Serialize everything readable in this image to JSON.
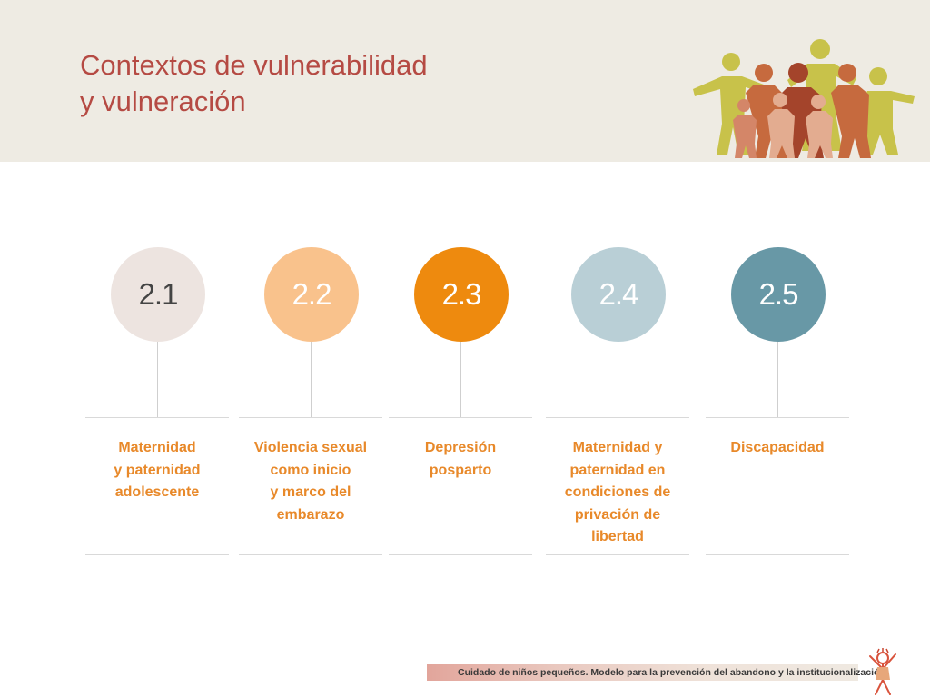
{
  "header": {
    "title_line1": "Contextos de vulnerabilidad",
    "title_line2": "y vulneración",
    "illustration_icon": "paper-people-cutout-icon"
  },
  "colors": {
    "header_bg": "#eeebe3",
    "title": "#b54a43",
    "label": "#e8892a"
  },
  "columns": [
    {
      "number": "2.1",
      "label": "Maternidad\ny paternidad\nadolescente",
      "circle_color": "#ede4e0",
      "number_color": "#444444"
    },
    {
      "number": "2.2",
      "label": "Violencia sexual\ncomo inicio\ny marco del\nembarazo",
      "circle_color": "#f9c28c",
      "number_color": "#ffffff"
    },
    {
      "number": "2.3",
      "label": "Depresión\nposparto",
      "circle_color": "#ee8a0e",
      "number_color": "#ffffff"
    },
    {
      "number": "2.4",
      "label": "Maternidad y\npaternidad en\ncondiciones de\nprivación de\nlibertad",
      "circle_color": "#b9cfd6",
      "number_color": "#ffffff"
    },
    {
      "number": "2.5",
      "label": "Discapacidad",
      "circle_color": "#6898a6",
      "number_color": "#ffffff"
    }
  ],
  "footer": {
    "text": "Cuidado de niños pequeños. Modelo para la prevención del abandono y la institucionalización",
    "figure_icon": "child-drawing-icon"
  }
}
